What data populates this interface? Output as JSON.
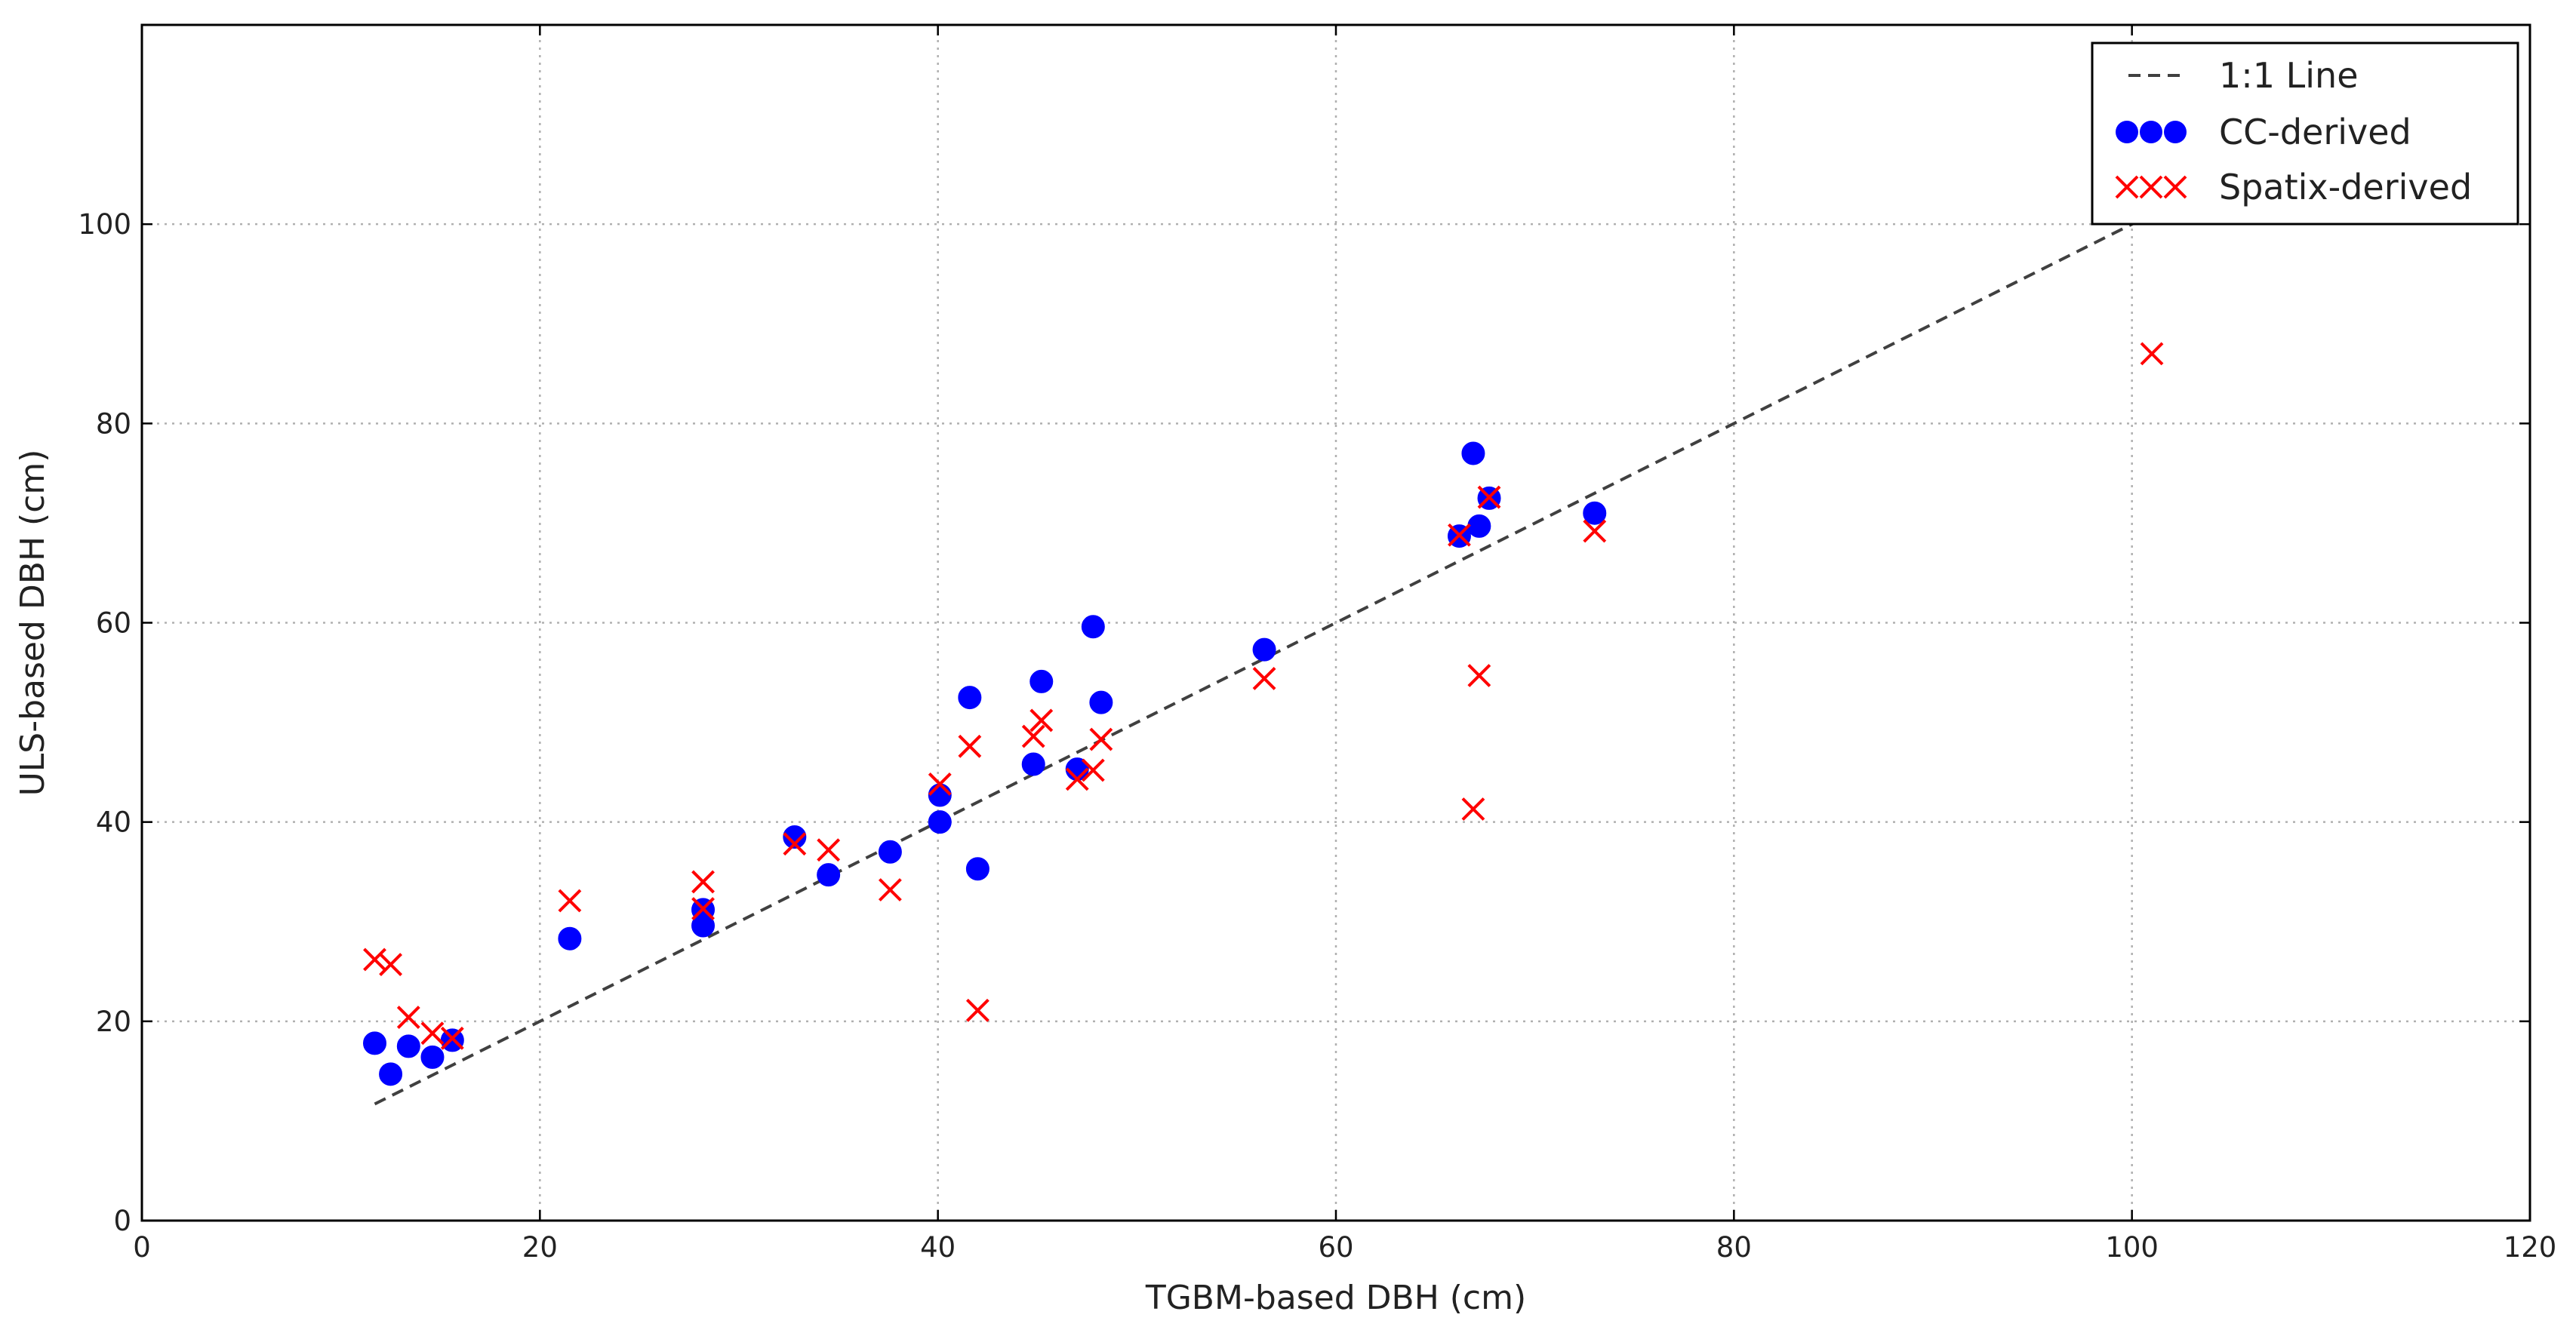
{
  "chart_data": {
    "type": "scatter",
    "title": "",
    "xlabel": "TGBM-based DBH (cm)",
    "ylabel": "ULS-based DBH (cm)",
    "xlim": [
      0,
      120
    ],
    "ylim": [
      0,
      120
    ],
    "xticks": [
      0,
      20,
      40,
      60,
      80,
      100,
      120
    ],
    "yticks": [
      0,
      20,
      40,
      60,
      80,
      100
    ],
    "grid": true,
    "legend_position": "top-right",
    "reference_line": {
      "name": "1:1 Line",
      "x": [
        11.7,
        101
      ],
      "y": [
        11.7,
        101
      ],
      "style": "dashed",
      "color": "#404040"
    },
    "series": [
      {
        "name": "CC-derived",
        "marker": "circle",
        "color": "#0000ff",
        "points": [
          [
            11.7,
            17.8
          ],
          [
            12.5,
            14.7
          ],
          [
            13.4,
            17.5
          ],
          [
            14.6,
            16.4
          ],
          [
            15.6,
            18.1
          ],
          [
            21.5,
            28.3
          ],
          [
            28.2,
            31.2
          ],
          [
            28.2,
            29.6
          ],
          [
            32.8,
            38.5
          ],
          [
            34.5,
            34.7
          ],
          [
            37.6,
            37.0
          ],
          [
            40.1,
            42.7
          ],
          [
            40.1,
            40.0
          ],
          [
            41.6,
            52.5
          ],
          [
            42.0,
            35.3
          ],
          [
            44.8,
            45.8
          ],
          [
            45.2,
            54.1
          ],
          [
            47.0,
            45.3
          ],
          [
            47.8,
            59.6
          ],
          [
            48.2,
            52.0
          ],
          [
            56.4,
            57.3
          ],
          [
            66.2,
            68.7
          ],
          [
            66.9,
            77.0
          ],
          [
            67.2,
            69.7
          ],
          [
            67.7,
            72.5
          ],
          [
            73.0,
            71.0
          ]
        ]
      },
      {
        "name": "Spatix-derived",
        "marker": "x",
        "color": "#ff0000",
        "points": [
          [
            11.7,
            26.2
          ],
          [
            12.5,
            25.7
          ],
          [
            13.4,
            20.4
          ],
          [
            14.6,
            18.8
          ],
          [
            15.6,
            18.3
          ],
          [
            21.5,
            32.1
          ],
          [
            28.2,
            34.0
          ],
          [
            28.2,
            31.3
          ],
          [
            32.8,
            37.8
          ],
          [
            34.5,
            37.2
          ],
          [
            37.6,
            33.2
          ],
          [
            40.1,
            43.8
          ],
          [
            41.6,
            47.6
          ],
          [
            42.0,
            21.1
          ],
          [
            44.8,
            48.6
          ],
          [
            45.2,
            50.2
          ],
          [
            47.0,
            44.3
          ],
          [
            47.8,
            45.2
          ],
          [
            48.2,
            48.3
          ],
          [
            56.4,
            54.4
          ],
          [
            66.2,
            68.8
          ],
          [
            66.9,
            41.3
          ],
          [
            67.2,
            54.7
          ],
          [
            67.7,
            72.6
          ],
          [
            73.0,
            69.2
          ],
          [
            101.0,
            87.0
          ]
        ]
      }
    ]
  }
}
